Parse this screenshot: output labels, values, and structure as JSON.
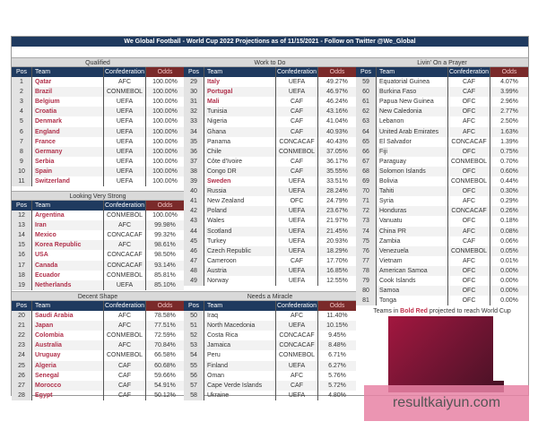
{
  "title": "We Global Football - World Cup 2022 Projections as of 11/15/2021 - Follow on Twitter @We_Global",
  "columns": {
    "pos": "Pos",
    "team": "Team",
    "confederation": "Confederation",
    "odds": "Odds"
  },
  "colors": {
    "header": "#1f3a5f",
    "odds_header": "#7a2a2a",
    "projected_team": "#b0304a"
  },
  "sections": [
    {
      "title": "Qualified",
      "rows": [
        [
          1,
          "Qatar",
          "AFC",
          "100.00%",
          true
        ],
        [
          2,
          "Brazil",
          "CONMEBOL",
          "100.00%",
          true
        ],
        [
          3,
          "Belgium",
          "UEFA",
          "100.00%",
          true
        ],
        [
          4,
          "Croatia",
          "UEFA",
          "100.00%",
          true
        ],
        [
          5,
          "Denmark",
          "UEFA",
          "100.00%",
          true
        ],
        [
          6,
          "England",
          "UEFA",
          "100.00%",
          true
        ],
        [
          7,
          "France",
          "UEFA",
          "100.00%",
          true
        ],
        [
          8,
          "Germany",
          "UEFA",
          "100.00%",
          true
        ],
        [
          9,
          "Serbia",
          "UEFA",
          "100.00%",
          true
        ],
        [
          10,
          "Spain",
          "UEFA",
          "100.00%",
          true
        ],
        [
          11,
          "Switzerland",
          "UEFA",
          "100.00%",
          true
        ]
      ]
    },
    {
      "title": "Looking Very Strong",
      "rows": [
        [
          12,
          "Argentina",
          "CONMEBOL",
          "100.00%",
          true
        ],
        [
          13,
          "Iran",
          "AFC",
          "99.98%",
          true
        ],
        [
          14,
          "Mexico",
          "CONCACAF",
          "99.32%",
          true
        ],
        [
          15,
          "Korea Republic",
          "AFC",
          "98.61%",
          true
        ],
        [
          16,
          "USA",
          "CONCACAF",
          "98.50%",
          true
        ],
        [
          17,
          "Canada",
          "CONCACAF",
          "93.14%",
          true
        ],
        [
          18,
          "Ecuador",
          "CONMEBOL",
          "85.81%",
          true
        ],
        [
          19,
          "Netherlands",
          "UEFA",
          "85.10%",
          true
        ]
      ]
    },
    {
      "title": "Decent Shape",
      "rows": [
        [
          20,
          "Saudi Arabia",
          "AFC",
          "78.58%",
          true
        ],
        [
          21,
          "Japan",
          "AFC",
          "77.51%",
          true
        ],
        [
          22,
          "Colombia",
          "CONMEBOL",
          "72.59%",
          true
        ],
        [
          23,
          "Australia",
          "AFC",
          "70.84%",
          true
        ],
        [
          24,
          "Uruguay",
          "CONMEBOL",
          "66.58%",
          true
        ],
        [
          25,
          "Algeria",
          "CAF",
          "60.68%",
          true
        ],
        [
          26,
          "Senegal",
          "CAF",
          "59.66%",
          true
        ],
        [
          27,
          "Morocco",
          "CAF",
          "54.91%",
          true
        ],
        [
          28,
          "Egypt",
          "CAF",
          "50.12%",
          true
        ]
      ]
    },
    {
      "title": "Work to Do",
      "rows": [
        [
          29,
          "Italy",
          "UEFA",
          "49.27%",
          true
        ],
        [
          30,
          "Portugal",
          "UEFA",
          "46.97%",
          true
        ],
        [
          31,
          "Mali",
          "CAF",
          "46.24%",
          true
        ],
        [
          32,
          "Tunisia",
          "CAF",
          "43.16%",
          false
        ],
        [
          33,
          "Nigeria",
          "CAF",
          "41.04%",
          false
        ],
        [
          34,
          "Ghana",
          "CAF",
          "40.93%",
          false
        ],
        [
          35,
          "Panama",
          "CONCACAF",
          "40.43%",
          false
        ],
        [
          36,
          "Chile",
          "CONMEBOL",
          "37.05%",
          false
        ],
        [
          37,
          "Côte d'Ivoire",
          "CAF",
          "36.17%",
          false
        ],
        [
          38,
          "Congo DR",
          "CAF",
          "35.55%",
          false
        ],
        [
          39,
          "Sweden",
          "UEFA",
          "33.51%",
          true
        ],
        [
          40,
          "Russia",
          "UEFA",
          "28.24%",
          false
        ],
        [
          41,
          "New Zealand",
          "OFC",
          "24.79%",
          false
        ],
        [
          42,
          "Poland",
          "UEFA",
          "23.67%",
          false
        ],
        [
          43,
          "Wales",
          "UEFA",
          "21.97%",
          false
        ],
        [
          44,
          "Scotland",
          "UEFA",
          "21.45%",
          false
        ],
        [
          45,
          "Turkey",
          "UEFA",
          "20.93%",
          false
        ],
        [
          46,
          "Czech Republic",
          "UEFA",
          "18.29%",
          false
        ],
        [
          47,
          "Cameroon",
          "CAF",
          "17.70%",
          false
        ],
        [
          48,
          "Austria",
          "UEFA",
          "16.85%",
          false
        ],
        [
          49,
          "Norway",
          "UEFA",
          "12.55%",
          false
        ]
      ]
    },
    {
      "title": "Needs a Miracle",
      "rows": [
        [
          50,
          "Iraq",
          "AFC",
          "11.40%",
          false
        ],
        [
          51,
          "North Macedonia",
          "UEFA",
          "10.15%",
          false
        ],
        [
          52,
          "Costa Rica",
          "CONCACAF",
          "9.45%",
          false
        ],
        [
          53,
          "Jamaica",
          "CONCACAF",
          "8.48%",
          false
        ],
        [
          54,
          "Peru",
          "CONMEBOL",
          "6.71%",
          false
        ],
        [
          55,
          "Finland",
          "UEFA",
          "6.27%",
          false
        ],
        [
          56,
          "Oman",
          "AFC",
          "5.76%",
          false
        ],
        [
          57,
          "Cape Verde Islands",
          "CAF",
          "5.72%",
          false
        ],
        [
          58,
          "Ukraine",
          "UEFA",
          "4.80%",
          false
        ]
      ]
    },
    {
      "title": "Livin' On a Prayer",
      "rows": [
        [
          59,
          "Equatorial Guinea",
          "CAF",
          "4.07%",
          false
        ],
        [
          60,
          "Burkina Faso",
          "CAF",
          "3.99%",
          false
        ],
        [
          61,
          "Papua New Guinea",
          "OFC",
          "2.96%",
          false
        ],
        [
          62,
          "New Caledonia",
          "OFC",
          "2.77%",
          false
        ],
        [
          63,
          "Lebanon",
          "AFC",
          "2.50%",
          false
        ],
        [
          64,
          "United Arab Emirates",
          "AFC",
          "1.63%",
          false
        ],
        [
          65,
          "El Salvador",
          "CONCACAF",
          "1.39%",
          false
        ],
        [
          66,
          "Fiji",
          "OFC",
          "0.75%",
          false
        ],
        [
          67,
          "Paraguay",
          "CONMEBOL",
          "0.70%",
          false
        ],
        [
          68,
          "Solomon Islands",
          "OFC",
          "0.60%",
          false
        ],
        [
          69,
          "Bolivia",
          "CONMEBOL",
          "0.44%",
          false
        ],
        [
          70,
          "Tahiti",
          "OFC",
          "0.30%",
          false
        ],
        [
          71,
          "Syria",
          "AFC",
          "0.29%",
          false
        ],
        [
          72,
          "Honduras",
          "CONCACAF",
          "0.26%",
          false
        ],
        [
          73,
          "Vanuatu",
          "OFC",
          "0.18%",
          false
        ],
        [
          74,
          "China PR",
          "AFC",
          "0.08%",
          false
        ],
        [
          75,
          "Zambia",
          "CAF",
          "0.06%",
          false
        ],
        [
          76,
          "Venezuela",
          "CONMEBOL",
          "0.05%",
          false
        ],
        [
          77,
          "Vietnam",
          "AFC",
          "0.01%",
          false
        ],
        [
          78,
          "American Samoa",
          "OFC",
          "0.00%",
          false
        ],
        [
          79,
          "Cook Islands",
          "OFC",
          "0.00%",
          false
        ],
        [
          80,
          "Samoa",
          "OFC",
          "0.00%",
          false
        ],
        [
          81,
          "Tonga",
          "OFC",
          "0.00%",
          false
        ]
      ]
    }
  ],
  "footer": {
    "prefix": "Teams in ",
    "highlight": "Bold Red",
    "suffix": " projected to reach World Cup"
  },
  "watermark": "resultkaiyun.com"
}
